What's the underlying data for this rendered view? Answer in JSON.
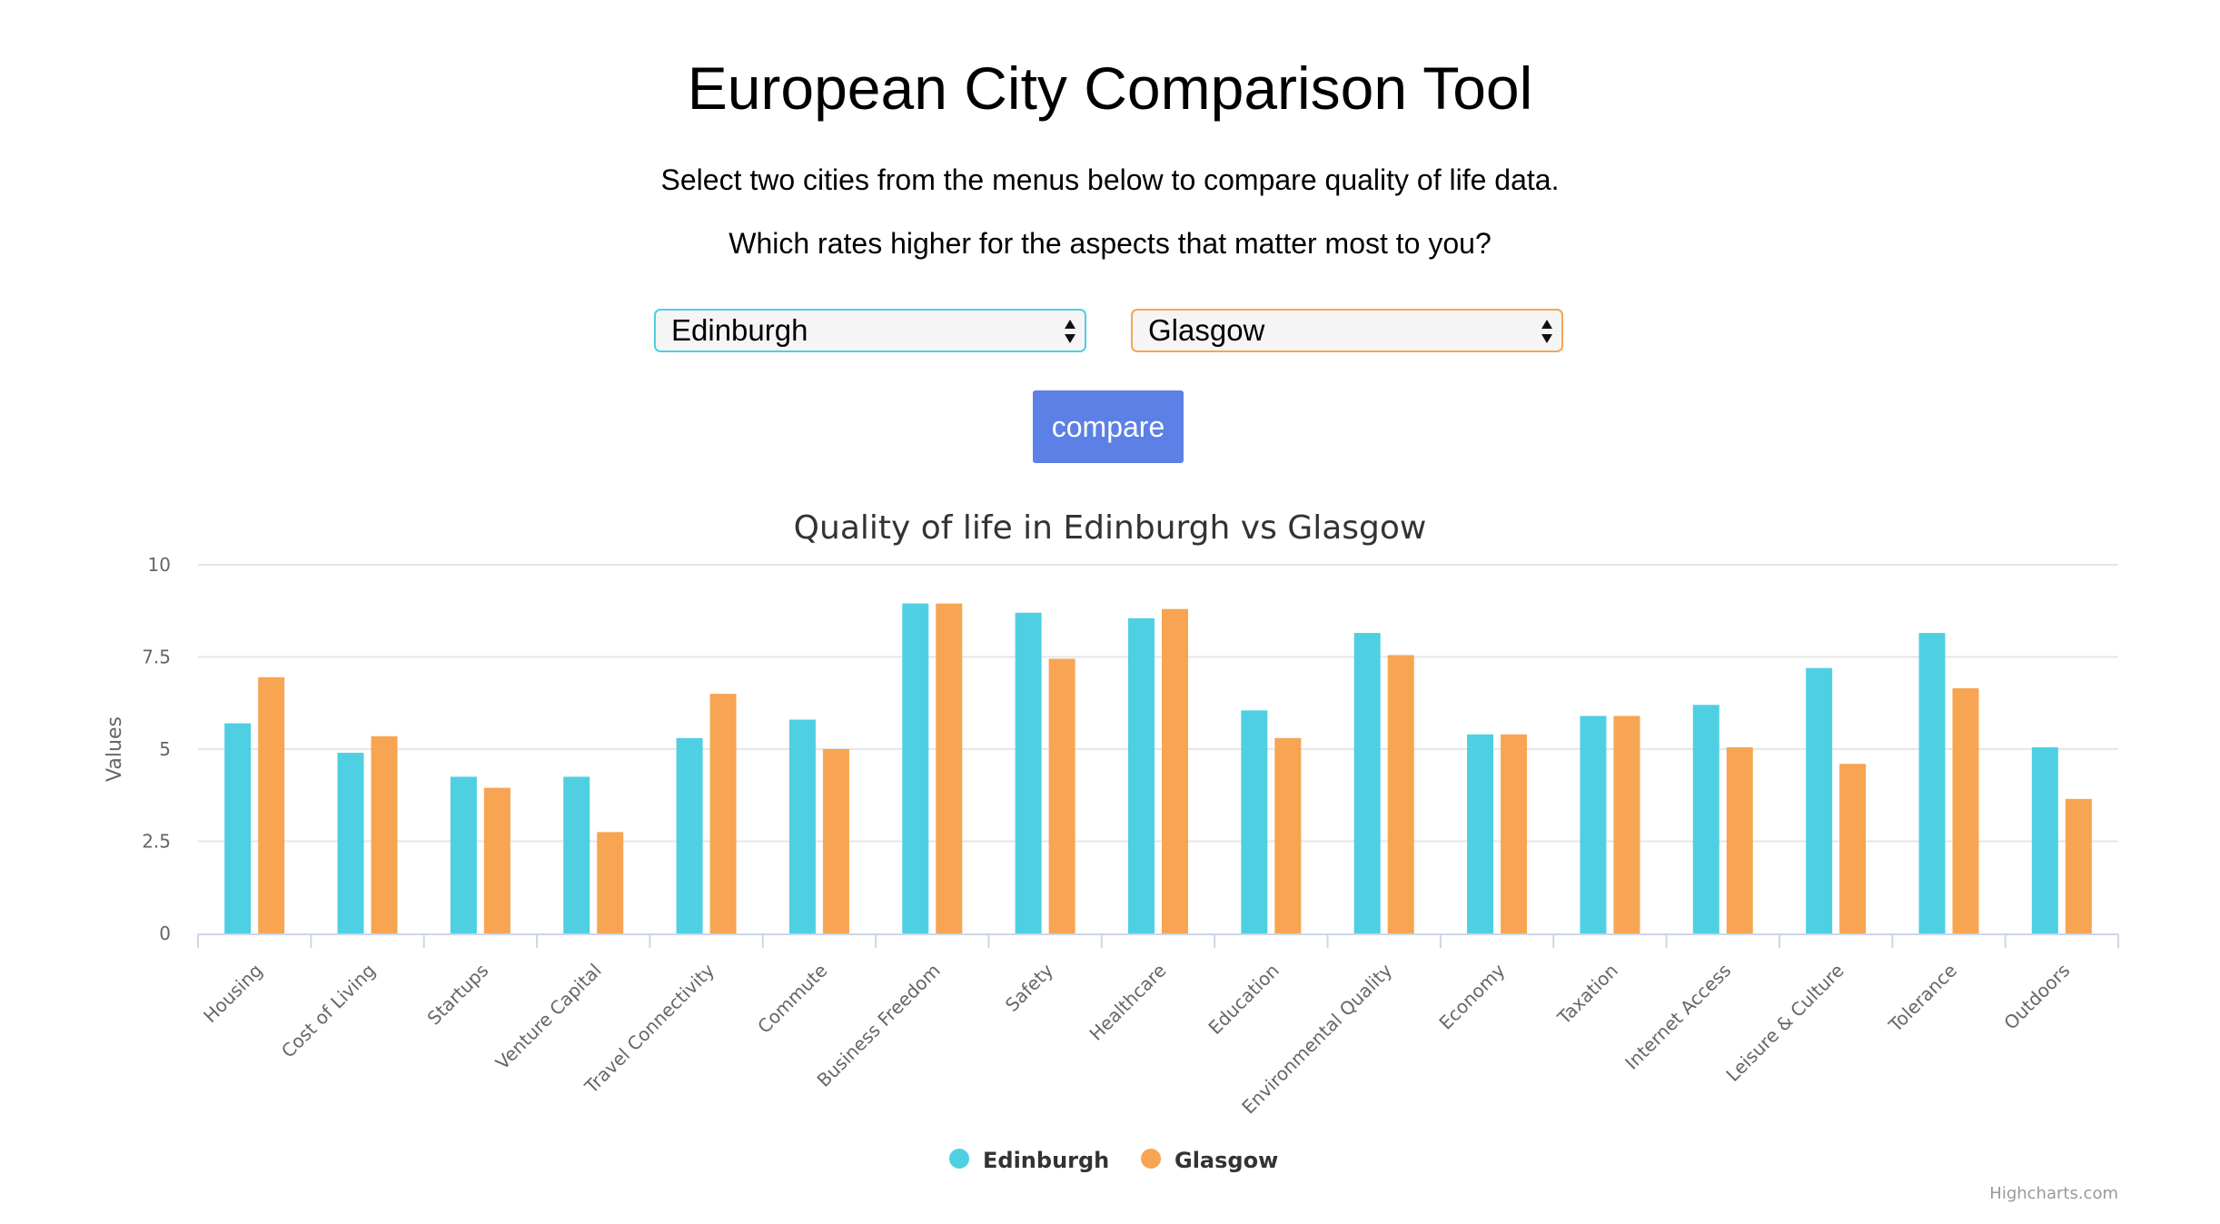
{
  "page": {
    "title": "European City Comparison Tool",
    "intro_1": "Select two cities from the menus below to compare quality of life data.",
    "intro_2": "Which rates higher for the aspects that matter most to you?",
    "compare_label": "compare",
    "credits": "Highcharts.com"
  },
  "selects": {
    "city_1": "Edinburgh",
    "city_2": "Glasgow"
  },
  "colors": {
    "series_1": "#4ed0e2",
    "series_2": "#f7a552",
    "button": "#5c80e6"
  },
  "chart_data": {
    "type": "bar",
    "title": "Quality of life in Edinburgh vs Glasgow",
    "ylabel": "Values",
    "xlabel": "",
    "ylim": [
      0,
      10
    ],
    "yticks": [
      "0",
      "2.5",
      "5",
      "7.5",
      "10"
    ],
    "grid": true,
    "legend_position": "bottom-center",
    "categories": [
      "Housing",
      "Cost of Living",
      "Startups",
      "Venture Capital",
      "Travel Connectivity",
      "Commute",
      "Business Freedom",
      "Safety",
      "Healthcare",
      "Education",
      "Environmental Quality",
      "Economy",
      "Taxation",
      "Internet Access",
      "Leisure & Culture",
      "Tolerance",
      "Outdoors"
    ],
    "series": [
      {
        "name": "Edinburgh",
        "color": "#4ed0e2",
        "values": [
          5.7,
          4.9,
          4.25,
          4.25,
          5.3,
          5.8,
          8.95,
          8.7,
          8.55,
          6.05,
          8.15,
          5.4,
          5.9,
          6.2,
          7.2,
          8.15,
          5.05
        ]
      },
      {
        "name": "Glasgow",
        "color": "#f7a552",
        "values": [
          6.95,
          5.35,
          3.95,
          2.75,
          6.5,
          5.0,
          8.95,
          7.45,
          8.8,
          5.3,
          7.55,
          5.4,
          5.9,
          5.05,
          4.6,
          6.65,
          3.65
        ]
      }
    ]
  }
}
